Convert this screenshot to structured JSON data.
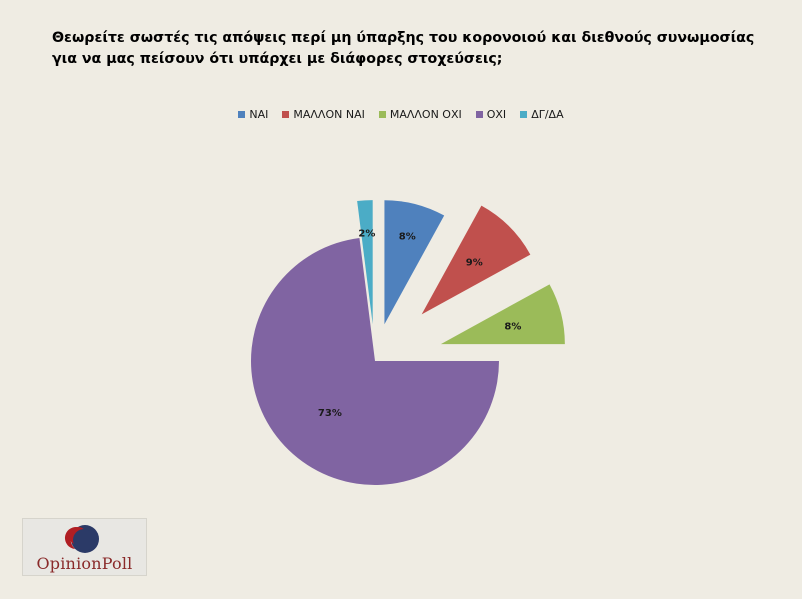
{
  "question": "Θεωρείτε σωστές τις απόψεις περί μη ύπαρξης του κορονοιού και διεθνούς συνωμοσίας για να μας πείσουν ότι υπάρχει με διάφορες στοχεύσεις;",
  "chart_data": {
    "type": "pie",
    "title": "Θεωρείτε σωστές τις απόψεις περί μη ύπαρξης του κορονοιού και διεθνούς συνωμοσίας για να μας πείσουν ότι υπάρχει με διάφορες στοχεύσεις;",
    "legend_position": "top",
    "exploded": true,
    "slices": [
      {
        "label": "ΝΑΙ",
        "value": 8,
        "value_label": "8%",
        "color": "#4f81bd"
      },
      {
        "label": "ΜΑΛΛΟΝ ΝΑΙ",
        "value": 9,
        "value_label": "9%",
        "color": "#c0504d"
      },
      {
        "label": "ΜΑΛΛΟΝ ΟΧΙ",
        "value": 8,
        "value_label": "8%",
        "color": "#9bbb59"
      },
      {
        "label": "ΟΧΙ",
        "value": 73,
        "value_label": "73%",
        "color": "#8064a2"
      },
      {
        "label": "ΔΓ/ΔΑ",
        "value": 2,
        "value_label": "2%",
        "color": "#4bacc6"
      }
    ]
  },
  "logo": {
    "text": "OpinionPoll",
    "brand_colors": [
      "#b01e23",
      "#2b3a67"
    ]
  }
}
